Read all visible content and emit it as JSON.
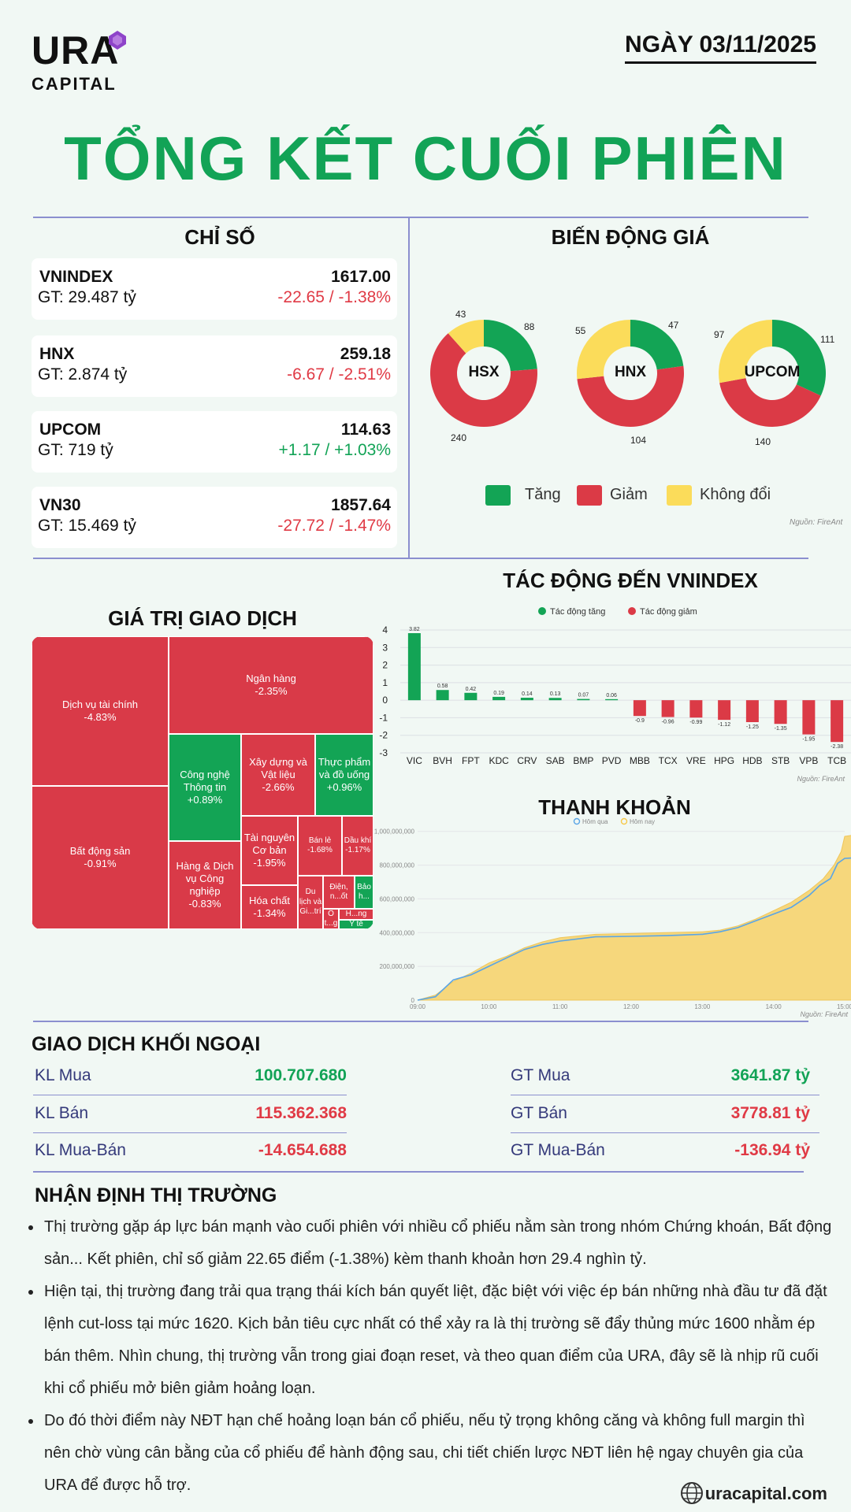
{
  "header": {
    "logo_main": "URA",
    "logo_sub": "CAPITAL",
    "date": "NGÀY 03/11/2025",
    "title": "TỔNG KẾT CUỐI PHIÊN"
  },
  "indices": {
    "title": "CHỈ SỐ",
    "items": [
      {
        "name": "VNINDEX",
        "gt": "GT: 29.487 tỷ",
        "value": "1617.00",
        "change": "-22.65 / -1.38%",
        "dir": "down"
      },
      {
        "name": "HNX",
        "gt": "GT: 2.874 tỷ",
        "value": "259.18",
        "change": "-6.67 / -2.51%",
        "dir": "down"
      },
      {
        "name": "UPCOM",
        "gt": "GT: 719 tỷ",
        "value": "114.63",
        "change": "+1.17 / +1.03%",
        "dir": "up"
      },
      {
        "name": "VN30",
        "gt": "GT: 15.469 tỷ",
        "value": "1857.64",
        "change": "-27.72 / -1.47%",
        "dir": "down"
      }
    ]
  },
  "price_movement": {
    "title": "BIẾN ĐỘNG GIÁ",
    "colors": {
      "up": "#13a455",
      "down": "#db3a46",
      "flat": "#fbdc5a"
    },
    "exchanges": [
      {
        "name": "HSX",
        "up": 88,
        "down": 240,
        "flat": 43
      },
      {
        "name": "HNX",
        "up": 47,
        "down": 104,
        "flat": 55
      },
      {
        "name": "UPCOM",
        "up": 111,
        "down": 140,
        "flat": 97
      }
    ],
    "legend": {
      "up": "Tăng",
      "down": "Giảm",
      "flat": "Không đổi"
    },
    "source": "Nguồn: FireAnt"
  },
  "chart_data": [
    {
      "type": "bar",
      "title": "TÁC ĐỘNG ĐẾN VNINDEX",
      "categories": [
        "VIC",
        "BVH",
        "FPT",
        "KDC",
        "CRV",
        "SAB",
        "BMP",
        "PVD",
        "MBB",
        "TCX",
        "VRE",
        "HPG",
        "HDB",
        "STB",
        "VPB",
        "TCB"
      ],
      "values": [
        3.82,
        0.58,
        0.42,
        0.19,
        0.14,
        0.13,
        0.07,
        0.06,
        -0.9,
        -0.96,
        -0.99,
        -1.12,
        -1.25,
        -1.35,
        -1.95,
        -2.38
      ],
      "ylim": [
        -3,
        4
      ],
      "yticks": [
        4,
        3,
        2,
        1,
        0,
        -1,
        -2,
        -3
      ],
      "legend": [
        "Tác động tăng",
        "Tác động giảm"
      ],
      "colors": {
        "positive": "#13a455",
        "negative": "#db3a46"
      },
      "source": "Nguồn: FireAnt"
    },
    {
      "type": "area",
      "title": "THANH KHOẢN",
      "legend": [
        "Hôm qua",
        "Hôm nay"
      ],
      "x": [
        "09:00",
        "10:00",
        "11:00",
        "12:00",
        "13:00",
        "14:00",
        "15:00"
      ],
      "yticks": [
        "0",
        "200,000,000",
        "400,000,000",
        "600,000,000",
        "800,000,000",
        "1,000,000,000"
      ],
      "ylim": [
        0,
        1050000000
      ],
      "series": [
        {
          "name": "Hôm nay",
          "color": "#f6d77c",
          "points": [
            [
              0.0,
              0
            ],
            [
              0.25,
              30000000
            ],
            [
              0.5,
              110000000
            ],
            [
              0.75,
              160000000
            ],
            [
              1.0,
              220000000
            ],
            [
              1.25,
              260000000
            ],
            [
              1.5,
              310000000
            ],
            [
              1.75,
              345000000
            ],
            [
              2.0,
              370000000
            ],
            [
              2.5,
              390000000
            ],
            [
              3.0,
              395000000
            ],
            [
              3.5,
              400000000
            ],
            [
              4.0,
              405000000
            ],
            [
              4.25,
              415000000
            ],
            [
              4.5,
              440000000
            ],
            [
              4.75,
              480000000
            ],
            [
              5.0,
              530000000
            ],
            [
              5.25,
              580000000
            ],
            [
              5.5,
              650000000
            ],
            [
              5.7,
              720000000
            ],
            [
              5.85,
              800000000
            ],
            [
              5.95,
              880000000
            ],
            [
              6.0,
              970000000
            ],
            [
              6.15,
              980000000
            ],
            [
              6.3,
              975000000
            ],
            [
              6.4,
              980000000
            ]
          ]
        },
        {
          "name": "Hôm qua",
          "color": "#5aa5e6",
          "points": [
            [
              0.0,
              0
            ],
            [
              0.25,
              20000000
            ],
            [
              0.5,
              120000000
            ],
            [
              0.75,
              150000000
            ],
            [
              1.0,
              200000000
            ],
            [
              1.25,
              250000000
            ],
            [
              1.5,
              300000000
            ],
            [
              1.75,
              330000000
            ],
            [
              2.0,
              350000000
            ],
            [
              2.5,
              375000000
            ],
            [
              3.0,
              378000000
            ],
            [
              3.5,
              382000000
            ],
            [
              4.0,
              390000000
            ],
            [
              4.25,
              405000000
            ],
            [
              4.5,
              430000000
            ],
            [
              4.75,
              470000000
            ],
            [
              5.0,
              510000000
            ],
            [
              5.25,
              550000000
            ],
            [
              5.5,
              620000000
            ],
            [
              5.65,
              680000000
            ],
            [
              5.8,
              720000000
            ],
            [
              5.9,
              810000000
            ],
            [
              6.0,
              840000000
            ],
            [
              6.2,
              845000000
            ],
            [
              6.4,
              845000000
            ]
          ]
        }
      ],
      "source": "Nguồn: FireAnt"
    }
  ],
  "trading_value": {
    "title": "GIÁ TRỊ GIAO DỊCH",
    "tiles": [
      {
        "label": "Dịch vụ tài chính",
        "change": "-4.83%",
        "color": "red"
      },
      {
        "label": "Bất động sản",
        "change": "-0.91%",
        "color": "red"
      },
      {
        "label": "Ngân hàng",
        "change": "-2.35%",
        "color": "red"
      },
      {
        "label": "Công nghệ Thông tin",
        "change": "+0.89%",
        "color": "green"
      },
      {
        "label": "Xây dựng và Vật liệu",
        "change": "-2.66%",
        "color": "red"
      },
      {
        "label": "Thực phẩm và đồ uống",
        "change": "+0.96%",
        "color": "green"
      },
      {
        "label": "Hàng & Dịch vụ Công nghiệp",
        "change": "-0.83%",
        "color": "red"
      },
      {
        "label": "Tài nguyên Cơ bản",
        "change": "-1.95%",
        "color": "red"
      },
      {
        "label": "Bán lẻ",
        "change": "-1.68%",
        "color": "red"
      },
      {
        "label": "Dầu khí",
        "change": "-1.17%",
        "color": "red"
      },
      {
        "label": "Hóa chất",
        "change": "-1.34%",
        "color": "red"
      },
      {
        "label": "Du lịch và Gi...trí",
        "change": "",
        "color": "red"
      },
      {
        "label": "Điện, n...ốt",
        "change": "",
        "color": "red"
      },
      {
        "label": "Bảo h...",
        "change": "",
        "color": "green"
      },
      {
        "label": "Ô t...g",
        "change": "",
        "color": "red"
      },
      {
        "label": "H...ng",
        "change": "",
        "color": "red"
      },
      {
        "label": "Y tế",
        "change": "",
        "color": "green"
      }
    ]
  },
  "foreign": {
    "title": "GIAO DỊCH KHỐI NGOẠI",
    "left": [
      {
        "label": "KL Mua",
        "value": "100.707.680",
        "dir": "up"
      },
      {
        "label": "KL Bán",
        "value": "115.362.368",
        "dir": "down"
      },
      {
        "label": "KL Mua-Bán",
        "value": "-14.654.688",
        "dir": "down"
      }
    ],
    "right": [
      {
        "label": "GT Mua",
        "value": "3641.87 tỷ",
        "dir": "up"
      },
      {
        "label": "GT Bán",
        "value": "3778.81 tỷ",
        "dir": "down"
      },
      {
        "label": "GT Mua-Bán",
        "value": "-136.94 tỷ",
        "dir": "down"
      }
    ]
  },
  "commentary": {
    "title": "NHẬN ĐỊNH THỊ TRƯỜNG",
    "bullets": [
      "Thị trường gặp áp lực bán mạnh vào cuối phiên với nhiều cổ phiếu nằm sàn trong nhóm Chứng khoán, Bất động sản... Kết phiên, chỉ số giảm 22.65 điểm (-1.38%) kèm thanh khoản hơn 29.4 nghìn tỷ.",
      "Hiện tại, thị trường đang trải qua trạng thái kích bán quyết liệt, đặc biệt với việc ép bán những nhà đầu tư đã đặt lệnh cut-loss tại mức 1620. Kịch bản tiêu cực nhất có thể xảy ra là thị trường sẽ đẩy thủng mức 1600 nhằm ép bán thêm. Nhìn chung, thị trường vẫn trong giai đoạn reset, và theo quan điểm của URA, đây sẽ là nhịp rũ cuối khi cổ phiếu mở biên giảm hoảng loạn.",
      "Do đó thời điểm này NĐT hạn chế hoảng loạn bán cổ phiếu, nếu tỷ trọng không căng và không full margin thì nên chờ vùng cân bằng của cổ phiếu để hành động sau, chi tiết chiến lược NĐT liên hệ ngay chuyên gia của URA để được hỗ trợ."
    ]
  },
  "footer": {
    "website": "uracapital.com",
    "icon": "globe-icon"
  }
}
